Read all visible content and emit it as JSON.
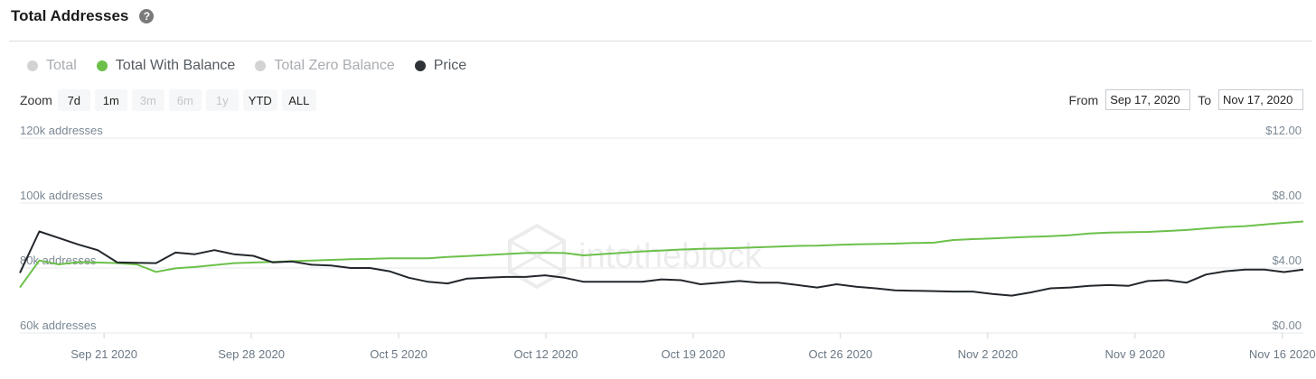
{
  "header": {
    "title": "Total Addresses",
    "help_glyph": "?"
  },
  "legend": [
    {
      "label": "Total",
      "color": "#d3d3d3",
      "text_color": "#a9adb2"
    },
    {
      "label": "Total With Balance",
      "color": "#6cc04a",
      "text_color": "#555b61"
    },
    {
      "label": "Total Zero Balance",
      "color": "#d3d3d3",
      "text_color": "#a9adb2"
    },
    {
      "label": "Price",
      "color": "#2f3337",
      "text_color": "#555b61"
    }
  ],
  "zoom": {
    "label": "Zoom",
    "options": [
      {
        "label": "7d",
        "enabled": true
      },
      {
        "label": "1m",
        "enabled": true
      },
      {
        "label": "3m",
        "enabled": false
      },
      {
        "label": "6m",
        "enabled": false
      },
      {
        "label": "1y",
        "enabled": false
      },
      {
        "label": "YTD",
        "enabled": true
      },
      {
        "label": "ALL",
        "enabled": true
      }
    ]
  },
  "range": {
    "from_label": "From",
    "from_value": "Sep 17, 2020",
    "to_label": "To",
    "to_value": "Nov 17, 2020"
  },
  "watermark": "intotheblock",
  "chart_data": {
    "type": "line",
    "x_tick_labels": [
      "Sep 21 2020",
      "Sep 28 2020",
      "Oct 5 2020",
      "Oct 12 2020",
      "Oct 19 2020",
      "Oct 26 2020",
      "Nov 2 2020",
      "Nov 9 2020",
      "Nov 16 2020"
    ],
    "x_range": [
      "Sep 17 2020",
      "Nov 17 2020"
    ],
    "y_left": {
      "ticks": [
        "60k addresses",
        "80k addresses",
        "100k addresses",
        "120k addresses"
      ],
      "range": [
        60000,
        120000
      ]
    },
    "y_right": {
      "ticks": [
        "$0.00",
        "$4.00",
        "$8.00",
        "$12.00"
      ],
      "range": [
        0,
        12
      ]
    },
    "grid": true,
    "series": [
      {
        "name": "Total With Balance",
        "axis": "left",
        "color": "#6cc04a",
        "values": [
          74000,
          82300,
          81100,
          81800,
          81700,
          81500,
          81100,
          78800,
          79900,
          80300,
          80900,
          81500,
          81700,
          81900,
          82100,
          82300,
          82500,
          82700,
          82800,
          83000,
          83000,
          83000,
          83400,
          83700,
          84000,
          84300,
          84600,
          84700,
          84600,
          83900,
          84300,
          84700,
          85100,
          85400,
          85700,
          85900,
          86000,
          86200,
          86400,
          86600,
          86800,
          86900,
          87100,
          87300,
          87400,
          87500,
          87700,
          87800,
          88600,
          88900,
          89100,
          89400,
          89600,
          89800,
          90100,
          90600,
          90900,
          91000,
          91100,
          91400,
          91700,
          92200,
          92600,
          92900,
          93400,
          93900,
          94300
        ]
      },
      {
        "name": "Price",
        "axis": "right",
        "color": "#23272b",
        "values": [
          3.7,
          6.25,
          5.85,
          5.45,
          5.1,
          4.35,
          4.32,
          4.3,
          4.95,
          4.85,
          5.1,
          4.85,
          4.75,
          4.35,
          4.4,
          4.2,
          4.15,
          4.0,
          4.0,
          3.8,
          3.4,
          3.15,
          3.05,
          3.35,
          3.4,
          3.45,
          3.45,
          3.55,
          3.4,
          3.15,
          3.15,
          3.15,
          3.15,
          3.3,
          3.25,
          3.0,
          3.1,
          3.2,
          3.1,
          3.1,
          2.95,
          2.8,
          3.0,
          2.85,
          2.75,
          2.62,
          2.6,
          2.58,
          2.55,
          2.55,
          2.4,
          2.3,
          2.5,
          2.75,
          2.8,
          2.9,
          2.95,
          2.9,
          3.2,
          3.25,
          3.1,
          3.6,
          3.8,
          3.9,
          3.9,
          3.75,
          3.9
        ]
      }
    ]
  }
}
